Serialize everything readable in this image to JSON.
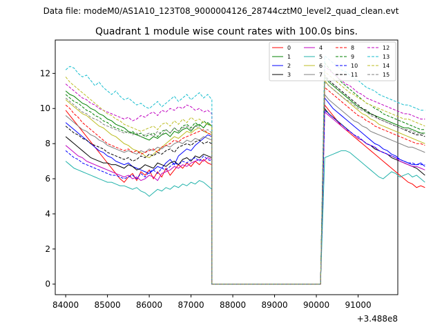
{
  "suptitle": "Data file: modeM0/AS1A10_123T08_9000004126_28744cztM0_level2_quad_clean.evt",
  "chart_data": {
    "type": "line",
    "title": "Quadrant 1 module wise count rates with 100.0s bins.",
    "xlabel": "",
    "ylabel": "",
    "x_offset_label": "+3.488e8",
    "xlim": [
      83750,
      91950
    ],
    "ylim": [
      -0.6,
      13.9
    ],
    "grid": false,
    "legend_position": "top-right",
    "x_ticks": [
      84000,
      85000,
      86000,
      87000,
      88000,
      89000,
      90000,
      91000
    ],
    "x_tick_labels": [
      "84000",
      "85000",
      "86000",
      "87000",
      "88000",
      "89000",
      "90000",
      "91000"
    ],
    "y_ticks": [
      0,
      2,
      4,
      6,
      8,
      10,
      12
    ],
    "y_tick_labels": [
      "0",
      "2",
      "4",
      "6",
      "8",
      "10",
      "12"
    ],
    "segment_start_x": 84000,
    "gap_start_x": 87500,
    "gap_end_x": 90100,
    "bin_seconds": 100,
    "series": [
      {
        "name": "0",
        "color": "#ff0000",
        "dashed": false,
        "seg1": [
          9.9,
          9.6,
          9.3,
          9.0,
          8.7,
          8.4,
          8.1,
          7.8,
          7.5,
          7.2,
          6.9,
          6.6,
          6.3,
          6.0,
          5.8,
          6.1,
          6.3,
          5.9,
          6.4,
          6.2,
          6.5,
          6.0,
          6.4,
          6.1,
          6.6,
          6.2,
          6.5,
          6.8,
          6.6,
          6.9,
          6.7,
          7.0,
          6.8,
          7.1,
          6.9,
          6.8
        ],
        "seg2": [
          10.2,
          9.9,
          9.6,
          9.3,
          9.0,
          8.8,
          8.6,
          8.4,
          8.2,
          8.0,
          7.8,
          7.6,
          7.4,
          7.2,
          7.0,
          6.8,
          6.6,
          6.4,
          6.2,
          6.0,
          5.8,
          5.7,
          5.5,
          5.6,
          5.5
        ]
      },
      {
        "name": "1",
        "color": "#008000",
        "dashed": false,
        "seg1": [
          11.0,
          10.8,
          10.7,
          10.5,
          10.3,
          10.2,
          10.0,
          9.9,
          9.7,
          9.6,
          9.4,
          9.3,
          9.1,
          9.0,
          8.9,
          8.7,
          8.6,
          8.5,
          8.4,
          8.3,
          8.2,
          8.4,
          8.3,
          8.5,
          8.6,
          8.4,
          8.7,
          8.6,
          8.8,
          8.9,
          8.7,
          9.0,
          9.1,
          8.9,
          9.2,
          9.0
        ],
        "seg2": [
          11.8,
          11.5,
          11.3,
          11.1,
          10.9,
          10.7,
          10.5,
          10.3,
          10.1,
          10.0,
          9.8,
          9.7,
          9.6,
          9.5,
          9.4,
          9.3,
          9.2,
          9.1,
          9.0,
          8.9,
          8.9,
          8.8,
          8.7,
          8.6,
          8.6
        ]
      },
      {
        "name": "2",
        "color": "#0000ff",
        "dashed": false,
        "seg1": [
          9.2,
          9.0,
          8.8,
          8.6,
          8.4,
          8.2,
          8.0,
          7.8,
          7.6,
          7.5,
          7.3,
          7.2,
          7.0,
          6.9,
          6.8,
          6.9,
          6.7,
          6.6,
          6.5,
          6.4,
          6.3,
          6.5,
          6.7,
          6.6,
          6.9,
          7.1,
          6.8,
          7.3,
          7.5,
          7.7,
          7.6,
          7.9,
          8.1,
          8.3,
          8.5,
          8.4
        ],
        "seg2": [
          10.6,
          10.3,
          10.0,
          9.8,
          9.6,
          9.4,
          9.2,
          9.0,
          8.8,
          8.6,
          8.4,
          8.2,
          8.0,
          7.9,
          7.7,
          7.6,
          7.4,
          7.3,
          7.1,
          7.0,
          6.9,
          6.8,
          6.8,
          6.9,
          6.7
        ]
      },
      {
        "name": "3",
        "color": "#000000",
        "dashed": false,
        "seg1": [
          8.4,
          8.2,
          8.0,
          7.8,
          7.6,
          7.4,
          7.2,
          7.1,
          7.0,
          6.9,
          6.9,
          6.8,
          6.8,
          6.7,
          6.6,
          6.8,
          6.7,
          6.5,
          6.6,
          6.8,
          6.7,
          6.6,
          6.9,
          6.8,
          6.7,
          6.9,
          7.0,
          6.8,
          7.1,
          7.2,
          7.0,
          7.3,
          7.2,
          7.4,
          7.3,
          7.2
        ],
        "seg2": [
          10.0,
          9.7,
          9.5,
          9.3,
          9.1,
          8.9,
          8.7,
          8.5,
          8.3,
          8.2,
          8.0,
          7.9,
          7.7,
          7.6,
          7.5,
          7.4,
          7.2,
          7.1,
          7.0,
          6.9,
          6.8,
          6.7,
          6.6,
          6.4,
          6.2
        ]
      },
      {
        "name": "4",
        "color": "#bf00bf",
        "dashed": false,
        "seg1": [
          7.9,
          7.7,
          7.5,
          7.3,
          7.2,
          7.0,
          6.9,
          6.8,
          6.7,
          6.6,
          6.5,
          6.4,
          6.3,
          6.2,
          6.1,
          6.2,
          6.0,
          6.1,
          5.9,
          6.0,
          6.2,
          6.1,
          5.9,
          6.3,
          6.4,
          6.5,
          6.7,
          6.6,
          6.8,
          6.7,
          6.9,
          7.0,
          7.1,
          7.0,
          7.2,
          7.1
        ],
        "seg2": [
          9.8,
          9.6,
          9.4,
          9.2,
          9.0,
          8.8,
          8.7,
          8.5,
          8.3,
          8.2,
          8.0,
          7.9,
          7.8,
          7.6,
          7.5,
          7.4,
          7.3,
          7.2,
          7.0,
          6.9,
          6.8,
          6.7,
          6.7,
          6.6,
          6.5
        ]
      },
      {
        "name": "5",
        "color": "#20b2aa",
        "dashed": false,
        "seg1": [
          7.0,
          6.8,
          6.6,
          6.5,
          6.4,
          6.3,
          6.2,
          6.1,
          6.0,
          5.9,
          5.8,
          5.8,
          5.7,
          5.6,
          5.6,
          5.5,
          5.4,
          5.5,
          5.3,
          5.2,
          5.0,
          5.2,
          5.4,
          5.3,
          5.5,
          5.4,
          5.6,
          5.5,
          5.7,
          5.6,
          5.8,
          5.7,
          5.9,
          5.8,
          5.6,
          5.4
        ],
        "seg2": [
          7.2,
          7.3,
          7.4,
          7.5,
          7.6,
          7.6,
          7.5,
          7.3,
          7.1,
          6.9,
          6.7,
          6.5,
          6.3,
          6.1,
          6.0,
          6.2,
          6.4,
          6.3,
          6.1,
          6.2,
          6.3,
          6.1,
          6.2,
          6.0,
          5.8
        ]
      },
      {
        "name": "6",
        "color": "#bcbd22",
        "dashed": false,
        "seg1": [
          10.5,
          10.3,
          10.1,
          9.9,
          9.7,
          9.6,
          9.4,
          9.2,
          9.0,
          8.9,
          8.7,
          8.5,
          8.4,
          8.2,
          8.0,
          7.9,
          7.7,
          7.6,
          7.5,
          7.3,
          7.2,
          7.4,
          7.6,
          7.8,
          8.0,
          8.2,
          8.4,
          8.3,
          8.5,
          8.7,
          8.6,
          8.8,
          8.9,
          8.7,
          8.6,
          8.5
        ],
        "seg2": [
          11.6,
          11.3,
          11.1,
          10.9,
          10.7,
          10.5,
          10.3,
          10.1,
          9.9,
          9.7,
          9.6,
          9.4,
          9.3,
          9.1,
          9.0,
          8.9,
          8.8,
          8.7,
          8.6,
          8.5,
          8.4,
          8.3,
          8.2,
          8.1,
          8.0
        ]
      },
      {
        "name": "7",
        "color": "#7f7f7f",
        "dashed": false,
        "seg1": [
          9.6,
          9.4,
          9.2,
          9.0,
          8.8,
          8.7,
          8.5,
          8.4,
          8.2,
          8.1,
          7.9,
          7.8,
          7.7,
          7.6,
          7.5,
          7.6,
          7.5,
          7.4,
          7.6,
          7.5,
          7.7,
          7.6,
          7.8,
          7.7,
          7.9,
          7.8,
          8.0,
          8.1,
          8.0,
          8.2,
          8.1,
          8.3,
          8.2,
          8.4,
          8.3,
          8.2
        ],
        "seg2": [
          10.8,
          10.5,
          10.3,
          10.1,
          9.9,
          9.7,
          9.5,
          9.3,
          9.2,
          9.0,
          8.9,
          8.7,
          8.6,
          8.5,
          8.4,
          8.3,
          8.2,
          8.1,
          8.0,
          7.9,
          7.8,
          7.8,
          7.7,
          7.6,
          7.5
        ]
      },
      {
        "name": "8",
        "color": "#ff0000",
        "dashed": true,
        "seg1": [
          10.2,
          10.0,
          9.7,
          9.5,
          9.2,
          9.0,
          8.8,
          8.6,
          8.4,
          8.2,
          8.0,
          7.9,
          7.8,
          7.7,
          7.6,
          7.7,
          7.5,
          7.6,
          7.4,
          7.5,
          7.6,
          7.7,
          7.5,
          7.8,
          7.9,
          8.0,
          8.2,
          8.1,
          8.3,
          8.4,
          8.5,
          8.6,
          8.7,
          8.8,
          8.6,
          8.5
        ],
        "seg2": [
          11.2,
          11.0,
          10.8,
          10.6,
          10.4,
          10.2,
          10.0,
          9.8,
          9.6,
          9.5,
          9.3,
          9.2,
          9.0,
          8.9,
          8.8,
          8.7,
          8.6,
          8.5,
          8.4,
          8.3,
          8.2,
          8.1,
          8.0,
          8.0,
          7.9
        ]
      },
      {
        "name": "9",
        "color": "#008000",
        "dashed": true,
        "seg1": [
          10.8,
          10.6,
          10.4,
          10.3,
          10.1,
          9.9,
          9.8,
          9.6,
          9.5,
          9.3,
          9.2,
          9.0,
          8.9,
          8.8,
          8.7,
          8.6,
          8.7,
          8.5,
          8.6,
          8.4,
          8.5,
          8.6,
          8.4,
          8.7,
          8.8,
          8.6,
          8.9,
          8.7,
          9.0,
          9.1,
          8.9,
          9.2,
          9.0,
          9.3,
          9.1,
          9.0
        ],
        "seg2": [
          12.6,
          12.3,
          12.0,
          11.8,
          11.5,
          11.3,
          11.1,
          10.9,
          10.7,
          10.5,
          10.3,
          10.2,
          10.0,
          9.9,
          9.7,
          9.6,
          9.5,
          9.4,
          9.3,
          9.2,
          9.1,
          9.0,
          8.9,
          8.8,
          8.8
        ]
      },
      {
        "name": "10",
        "color": "#0000ff",
        "dashed": true,
        "seg1": [
          7.6,
          7.4,
          7.2,
          7.1,
          6.9,
          6.8,
          6.7,
          6.6,
          6.5,
          6.4,
          6.3,
          6.2,
          6.2,
          6.1,
          6.0,
          6.1,
          6.2,
          6.0,
          6.3,
          6.1,
          6.4,
          6.5,
          6.3,
          6.6,
          6.5,
          6.7,
          6.9,
          6.8,
          7.0,
          6.9,
          7.1,
          7.2,
          7.0,
          7.3,
          7.1,
          7.0
        ],
        "seg2": [
          9.9,
          9.7,
          9.5,
          9.3,
          9.1,
          8.9,
          8.7,
          8.5,
          8.4,
          8.2,
          8.0,
          7.9,
          7.8,
          7.6,
          7.5,
          7.4,
          7.3,
          7.2,
          7.1,
          7.0,
          6.9,
          6.9,
          6.8,
          6.8,
          6.8
        ]
      },
      {
        "name": "11",
        "color": "#000000",
        "dashed": true,
        "seg1": [
          9.0,
          8.8,
          8.6,
          8.5,
          8.3,
          8.2,
          8.0,
          7.9,
          7.8,
          7.7,
          7.5,
          7.4,
          7.3,
          7.2,
          7.1,
          7.2,
          7.0,
          7.1,
          7.3,
          7.2,
          7.4,
          7.3,
          7.5,
          7.4,
          7.6,
          7.7,
          7.5,
          7.8,
          7.9,
          8.0,
          7.9,
          8.1,
          8.2,
          8.0,
          8.1,
          8.0
        ],
        "seg2": [
          11.9,
          11.6,
          11.4,
          11.2,
          11.0,
          10.8,
          10.6,
          10.4,
          10.2,
          10.0,
          9.9,
          9.7,
          9.6,
          9.4,
          9.3,
          9.2,
          9.1,
          9.0,
          8.9,
          8.8,
          8.7,
          8.6,
          8.5,
          8.5,
          8.4
        ]
      },
      {
        "name": "12",
        "color": "#bf00bf",
        "dashed": true,
        "seg1": [
          11.4,
          11.2,
          11.0,
          10.8,
          10.6,
          10.5,
          10.3,
          10.2,
          10.0,
          9.9,
          9.8,
          9.7,
          9.6,
          9.5,
          9.4,
          9.5,
          9.3,
          9.4,
          9.6,
          9.5,
          9.7,
          9.8,
          9.6,
          9.9,
          9.8,
          10.0,
          9.9,
          10.1,
          10.0,
          10.2,
          10.1,
          9.9,
          10.0,
          9.8,
          9.9,
          9.7
        ],
        "seg2": [
          12.4,
          12.2,
          12.0,
          11.8,
          11.6,
          11.4,
          11.3,
          11.1,
          10.9,
          10.8,
          10.6,
          10.5,
          10.4,
          10.3,
          10.2,
          10.1,
          10.0,
          9.9,
          9.8,
          9.7,
          9.7,
          9.6,
          9.5,
          9.4,
          9.4
        ]
      },
      {
        "name": "13",
        "color": "#17becf",
        "dashed": true,
        "seg1": [
          12.2,
          12.4,
          12.3,
          12.0,
          11.8,
          11.9,
          11.6,
          11.3,
          11.5,
          11.2,
          11.0,
          10.8,
          11.0,
          10.7,
          10.5,
          10.6,
          10.4,
          10.2,
          10.3,
          10.1,
          10.0,
          10.2,
          10.4,
          10.1,
          10.3,
          10.5,
          10.7,
          10.4,
          10.6,
          10.8,
          10.5,
          10.7,
          10.9,
          10.6,
          10.8,
          10.5
        ],
        "seg2": [
          13.0,
          12.8,
          12.6,
          12.4,
          12.2,
          12.1,
          11.9,
          11.7,
          11.6,
          11.4,
          11.2,
          11.1,
          11.0,
          10.8,
          10.7,
          10.6,
          10.5,
          10.4,
          10.3,
          10.2,
          10.2,
          10.1,
          10.0,
          9.9,
          9.9
        ]
      },
      {
        "name": "14",
        "color": "#bcbd22",
        "dashed": true,
        "seg1": [
          11.8,
          11.5,
          11.3,
          11.1,
          10.9,
          10.7,
          10.5,
          10.3,
          10.1,
          9.9,
          9.7,
          9.6,
          9.4,
          9.3,
          9.1,
          9.0,
          8.9,
          8.8,
          8.7,
          8.8,
          8.9,
          9.0,
          8.8,
          9.1,
          9.2,
          9.0,
          9.3,
          9.1,
          9.4,
          9.2,
          9.5,
          9.3,
          9.4,
          9.2,
          9.1,
          9.0
        ],
        "seg2": [
          12.1,
          11.9,
          11.7,
          11.5,
          11.3,
          11.1,
          10.9,
          10.8,
          10.6,
          10.5,
          10.3,
          10.2,
          10.1,
          10.0,
          9.9,
          9.8,
          9.7,
          9.6,
          9.5,
          9.4,
          9.4,
          9.3,
          9.2,
          9.1,
          9.0
        ]
      },
      {
        "name": "15",
        "color": "#7f7f7f",
        "dashed": true,
        "seg1": [
          10.6,
          10.4,
          10.2,
          10.0,
          9.8,
          9.7,
          9.5,
          9.4,
          9.3,
          9.1,
          9.0,
          8.9,
          8.8,
          8.7,
          8.6,
          8.7,
          8.5,
          8.6,
          8.4,
          8.5,
          8.6,
          8.4,
          8.7,
          8.5,
          8.8,
          8.6,
          8.9,
          8.7,
          8.9,
          9.0,
          8.8,
          9.0,
          8.9,
          8.7,
          8.8,
          8.6
        ],
        "seg2": [
          11.5,
          11.3,
          11.1,
          10.9,
          10.7,
          10.5,
          10.4,
          10.2,
          10.0,
          9.9,
          9.8,
          9.6,
          9.5,
          9.4,
          9.3,
          9.2,
          9.1,
          9.0,
          8.9,
          8.8,
          8.8,
          8.7,
          8.6,
          8.6,
          8.5
        ]
      }
    ]
  }
}
